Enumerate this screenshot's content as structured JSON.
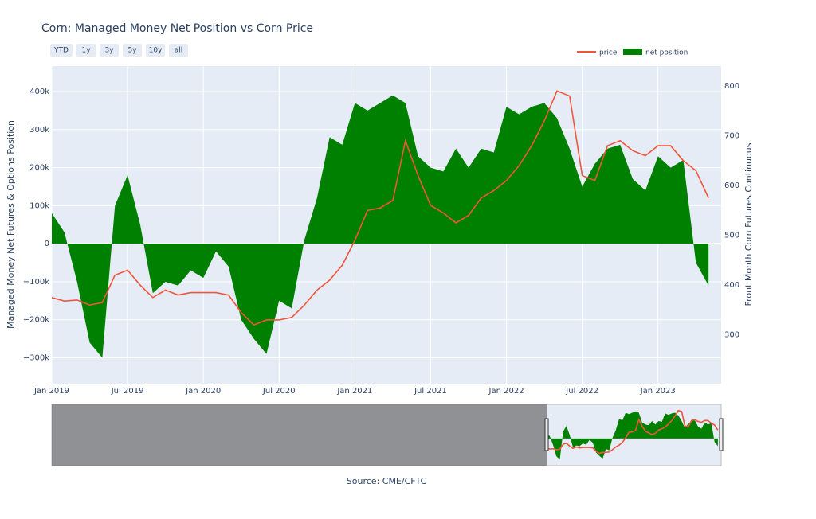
{
  "chart_data": {
    "type": "line",
    "title": "Corn: Managed Money Net Position vs Corn Price",
    "range_buttons": [
      "YTD",
      "1y",
      "3y",
      "5y",
      "10y",
      "all"
    ],
    "ylabel": "Managed Money Net Futures & Options Position",
    "y2label": "Front Month Corn Futures Continuous",
    "source": "Source: CME/CFTC",
    "grid": true,
    "legend": "top-right",
    "x": [
      "2019-01",
      "2019-02",
      "2019-03",
      "2019-04",
      "2019-05",
      "2019-06",
      "2019-07",
      "2019-08",
      "2019-09",
      "2019-10",
      "2019-11",
      "2019-12",
      "2020-01",
      "2020-02",
      "2020-03",
      "2020-04",
      "2020-05",
      "2020-06",
      "2020-07",
      "2020-08",
      "2020-09",
      "2020-10",
      "2020-11",
      "2020-12",
      "2021-01",
      "2021-02",
      "2021-03",
      "2021-04",
      "2021-05",
      "2021-06",
      "2021-07",
      "2021-08",
      "2021-09",
      "2021-10",
      "2021-11",
      "2021-12",
      "2022-01",
      "2022-02",
      "2022-03",
      "2022-04",
      "2022-05",
      "2022-06",
      "2022-07",
      "2022-08",
      "2022-09",
      "2022-10",
      "2022-11",
      "2022-12",
      "2023-01",
      "2023-02",
      "2023-03",
      "2023-04",
      "2023-05"
    ],
    "xlim": [
      "2019-01",
      "2023-06"
    ],
    "xticks": [
      {
        "value": "2019-01",
        "label": "Jan 2019"
      },
      {
        "value": "2019-07",
        "label": "Jul 2019"
      },
      {
        "value": "2020-01",
        "label": "Jan 2020"
      },
      {
        "value": "2020-07",
        "label": "Jul 2020"
      },
      {
        "value": "2021-01",
        "label": "Jan 2021"
      },
      {
        "value": "2021-07",
        "label": "Jul 2021"
      },
      {
        "value": "2022-01",
        "label": "Jan 2022"
      },
      {
        "value": "2022-07",
        "label": "Jul 2022"
      },
      {
        "value": "2023-01",
        "label": "Jan 2023"
      }
    ],
    "ylim": [
      -368000,
      467000
    ],
    "yticks": [
      {
        "value": -300000,
        "label": "−300k"
      },
      {
        "value": -200000,
        "label": "−200k"
      },
      {
        "value": -100000,
        "label": "−100k"
      },
      0,
      {
        "value": 100000,
        "label": "100k"
      },
      {
        "value": 200000,
        "label": "200k"
      },
      {
        "value": 300000,
        "label": "300k"
      },
      {
        "value": 400000,
        "label": "400k"
      }
    ],
    "y2lim": [
      202,
      840
    ],
    "y2ticks": [
      300,
      400,
      500,
      600,
      700,
      800
    ],
    "series": [
      {
        "name": "price",
        "color": "#ef553b",
        "axis": "y2",
        "type": "line",
        "values": [
          375,
          368,
          370,
          360,
          365,
          420,
          430,
          400,
          375,
          390,
          380,
          385,
          385,
          385,
          380,
          345,
          320,
          330,
          330,
          335,
          360,
          390,
          410,
          440,
          490,
          550,
          555,
          570,
          690,
          620,
          560,
          545,
          525,
          540,
          575,
          590,
          610,
          640,
          680,
          730,
          790,
          780,
          620,
          610,
          680,
          690,
          670,
          660,
          680,
          680,
          650,
          630,
          575
        ]
      },
      {
        "name": "net position",
        "color": "#008000",
        "type": "area",
        "values": [
          80000,
          30000,
          -100000,
          -260000,
          -300000,
          100000,
          180000,
          50000,
          -130000,
          -100000,
          -110000,
          -70000,
          -90000,
          -20000,
          -60000,
          -200000,
          -250000,
          -290000,
          -150000,
          -170000,
          10000,
          120000,
          280000,
          260000,
          370000,
          350000,
          370000,
          390000,
          370000,
          230000,
          200000,
          190000,
          250000,
          200000,
          250000,
          240000,
          360000,
          340000,
          360000,
          370000,
          330000,
          250000,
          150000,
          210000,
          250000,
          260000,
          170000,
          140000,
          230000,
          200000,
          220000,
          -50000,
          -110000
        ]
      }
    ]
  }
}
